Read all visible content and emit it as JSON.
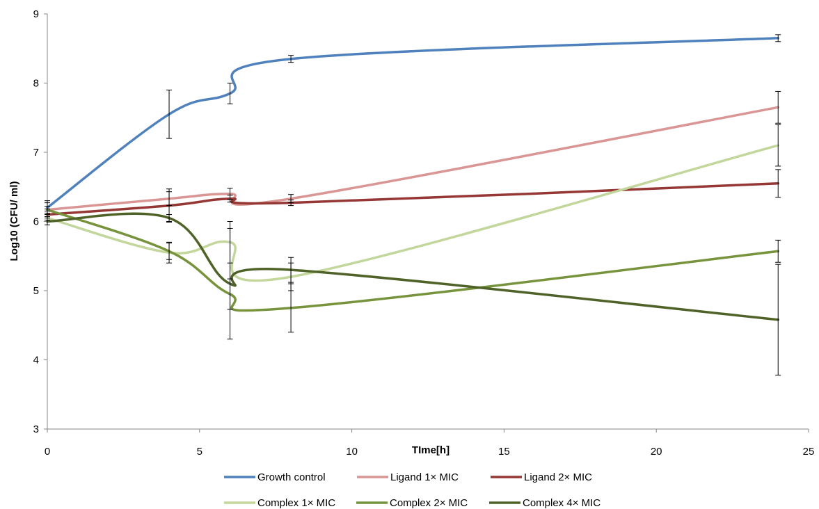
{
  "chart_data": {
    "type": "line",
    "title": "",
    "xlabel": "TIme[h]",
    "ylabel": "Log10 (CFU/ ml)",
    "xlim": [
      0,
      25
    ],
    "ylim": [
      3,
      9
    ],
    "xticks": [
      0,
      5,
      10,
      15,
      20,
      25
    ],
    "yticks": [
      3,
      4,
      5,
      6,
      7,
      8,
      9
    ],
    "grid": false,
    "legend_position": "bottom",
    "x": [
      0,
      4,
      6,
      8,
      24
    ],
    "series": [
      {
        "name": "Growth control",
        "color": "#4f81bd",
        "values": [
          6.2,
          7.55,
          7.85,
          8.35,
          8.65
        ],
        "errors": [
          0.1,
          0.35,
          0.15,
          0.05,
          0.05
        ]
      },
      {
        "name": "Ligand 1× MIC",
        "color": "#d99694",
        "values": [
          6.17,
          6.33,
          6.4,
          6.33,
          7.65
        ],
        "errors": [
          0.1,
          0.1,
          0.08,
          0.06,
          0.23
        ]
      },
      {
        "name": "Ligand 2× MIC",
        "color": "#953735",
        "values": [
          6.1,
          6.23,
          6.33,
          6.27,
          6.55
        ],
        "errors": [
          0.08,
          0.24,
          0.05,
          0.04,
          0.2
        ]
      },
      {
        "name": "Complex 1× MIC",
        "color": "#c3d69b",
        "values": [
          6.05,
          5.55,
          5.7,
          5.2,
          7.1
        ],
        "errors": [
          0.1,
          0.15,
          0.3,
          0.2,
          0.3
        ]
      },
      {
        "name": "Complex 2× MIC",
        "color": "#77933c",
        "values": [
          6.17,
          5.57,
          4.95,
          4.75,
          5.57
        ],
        "errors": [
          0.05,
          0.12,
          0.22,
          0.35,
          0.16
        ]
      },
      {
        "name": "Complex 4× MIC",
        "color": "#4f6228",
        "values": [
          6.0,
          6.05,
          5.1,
          5.3,
          4.58
        ],
        "errors": [
          0.05,
          0.05,
          0.8,
          0.18,
          0.8
        ]
      }
    ]
  }
}
